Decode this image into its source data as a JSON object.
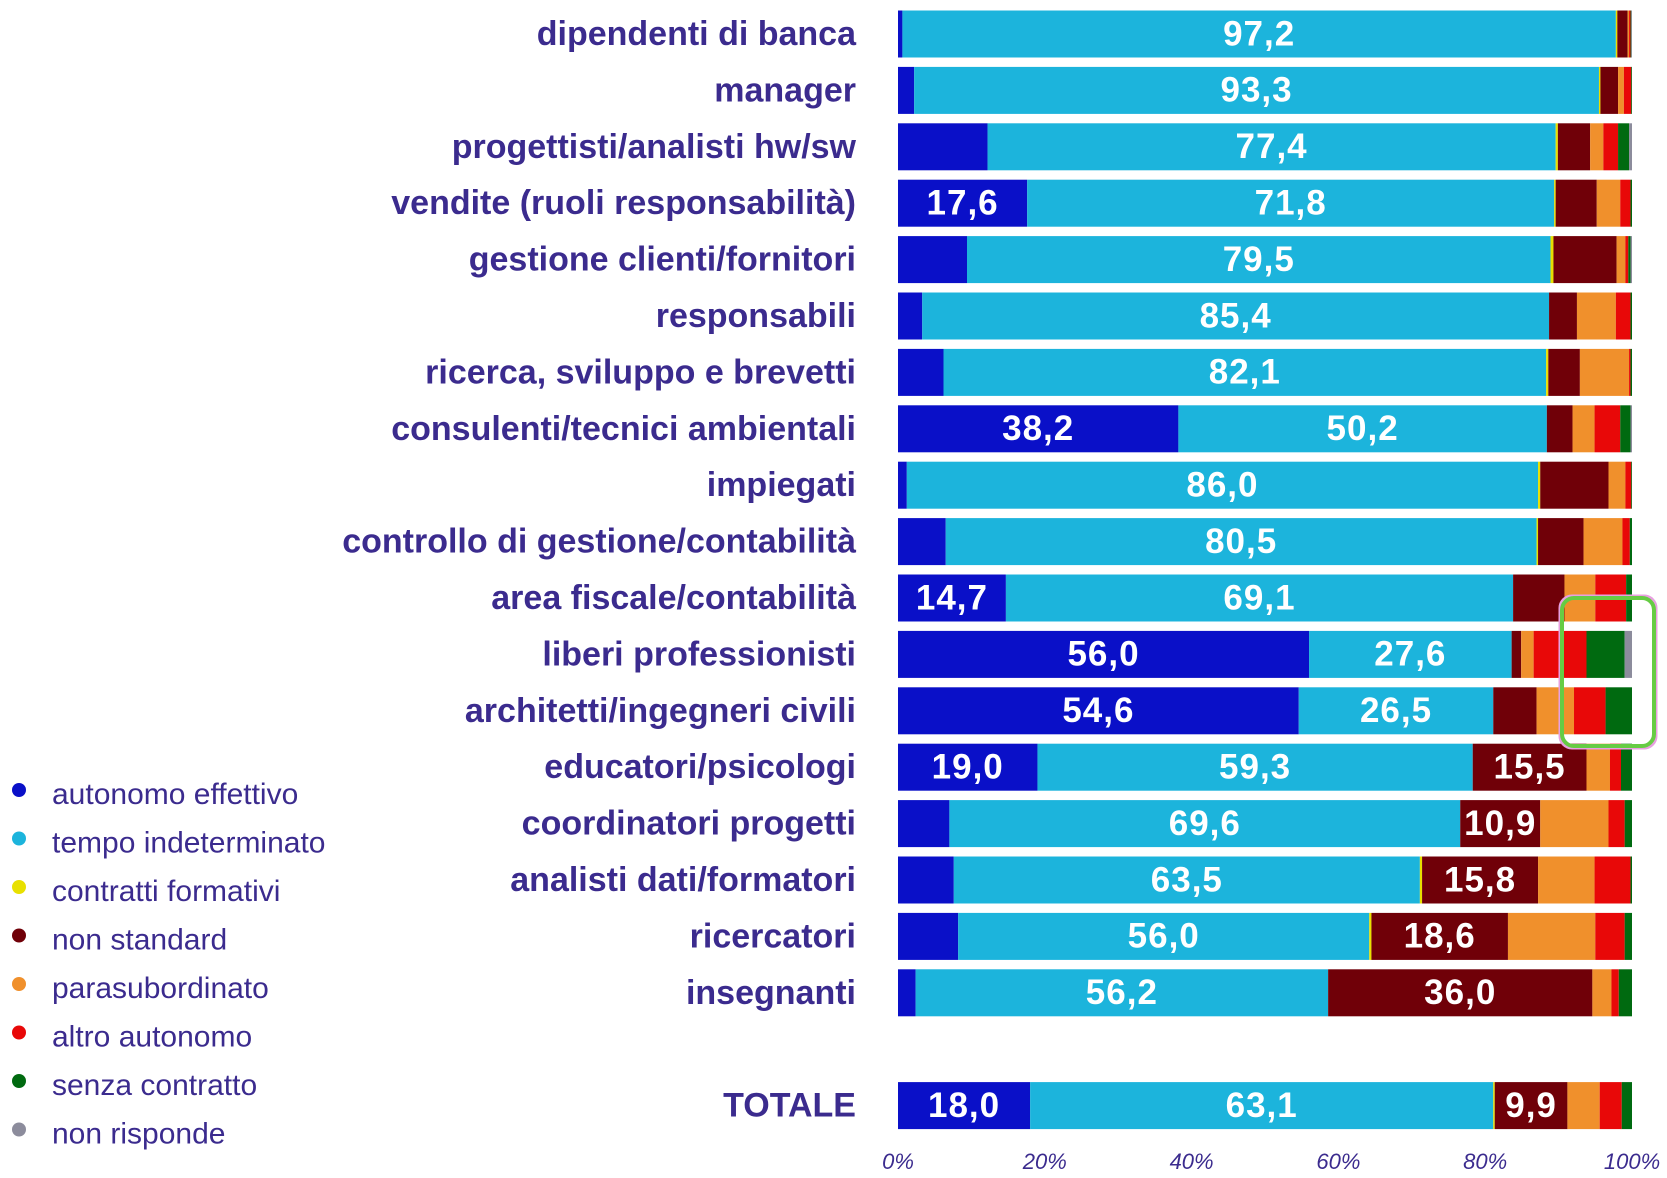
{
  "chart_data": {
    "type": "stacked-barh",
    "categories": [
      "dipendenti di banca",
      "manager",
      "progettisti/analisti hw/sw",
      "vendite (ruoli responsabilità)",
      "gestione clienti/fornitori",
      "responsabili",
      "ricerca, sviluppo e brevetti",
      "consulenti/tecnici ambientali",
      "impiegati",
      "controllo di gestione/contabilità",
      "area fiscale/contabilità",
      "liberi professionisti",
      "architetti/ingegneri civili",
      "educatori/psicologi",
      "coordinatori progetti",
      "analisti dati/formatori",
      "ricercatori",
      "insegnanti",
      null,
      "TOTALE"
    ],
    "series": [
      {
        "name": "autonomo effettivo",
        "color": "#0a10c8",
        "values": [
          0.6,
          2.2,
          12.2,
          17.6,
          9.4,
          3.3,
          6.2,
          38.2,
          1.2,
          6.5,
          14.7,
          56.0,
          54.6,
          19.0,
          7.0,
          7.6,
          8.2,
          2.4,
          null,
          18.0
        ],
        "value_labels": [
          null,
          null,
          null,
          "17,6",
          null,
          null,
          null,
          "38,2",
          null,
          null,
          "14,7",
          "56,0",
          "54,6",
          "19,0",
          null,
          null,
          null,
          null,
          null,
          "18,0"
        ]
      },
      {
        "name": "tempo indeterminato",
        "color": "#1cb4dc",
        "values": [
          97.2,
          93.3,
          77.4,
          71.8,
          79.5,
          85.4,
          82.1,
          50.2,
          86.0,
          80.5,
          69.1,
          27.6,
          26.5,
          59.3,
          69.6,
          63.5,
          56.0,
          56.2,
          null,
          63.1
        ],
        "value_labels": [
          "97,2",
          "93,3",
          "77,4",
          "71,8",
          "79,5",
          "85,4",
          "82,1",
          "50,2",
          "86,0",
          "80,5",
          "69,1",
          "27,6",
          "26,5",
          "59,3",
          "69,6",
          "63,5",
          "56,0",
          "56,2",
          null,
          "63,1"
        ]
      },
      {
        "name": "contratti formativi",
        "color": "#e8e000",
        "values": [
          0.2,
          0.2,
          0.3,
          0.2,
          0.4,
          0.0,
          0.3,
          0.0,
          0.3,
          0.2,
          0.0,
          0.0,
          0.0,
          0.0,
          0.0,
          0.3,
          0.3,
          0.0,
          null,
          0.2
        ]
      },
      {
        "name": "non standard",
        "color": "#700008",
        "values": [
          1.4,
          2.4,
          4.4,
          5.6,
          8.6,
          3.8,
          4.3,
          3.5,
          9.3,
          6.2,
          7.0,
          1.3,
          5.9,
          15.5,
          10.9,
          15.8,
          18.6,
          36.0,
          null,
          9.9
        ],
        "value_labels": [
          null,
          null,
          null,
          null,
          null,
          null,
          null,
          null,
          null,
          null,
          null,
          null,
          null,
          "15,5",
          "10,9",
          "15,8",
          "18,6",
          "36,0",
          null,
          "9,9"
        ]
      },
      {
        "name": "parasubordinato",
        "color": "#f0902c",
        "values": [
          0.2,
          0.8,
          1.8,
          3.2,
          1.2,
          5.3,
          6.7,
          3.0,
          2.3,
          5.3,
          4.2,
          1.7,
          5.1,
          3.2,
          9.3,
          7.7,
          11.9,
          2.6,
          null,
          4.4
        ]
      },
      {
        "name": "altro autonomo",
        "color": "#e80808",
        "values": [
          0.2,
          1.0,
          2.0,
          1.4,
          0.4,
          2.0,
          0.2,
          3.5,
          0.8,
          1.0,
          4.2,
          7.2,
          4.3,
          1.5,
          2.2,
          4.9,
          4.0,
          1.0,
          null,
          3.0
        ]
      },
      {
        "name": "senza contratto",
        "color": "#006a10",
        "values": [
          0.1,
          0.1,
          1.5,
          0.2,
          0.3,
          0.2,
          0.2,
          1.4,
          0.1,
          0.3,
          0.8,
          5.2,
          3.6,
          1.5,
          1.0,
          0.2,
          1.0,
          1.8,
          null,
          1.4
        ]
      },
      {
        "name": "non risponde",
        "color": "#8c8c9c",
        "values": [
          0.1,
          0.0,
          0.4,
          0.0,
          0.2,
          0.0,
          0.0,
          0.2,
          0.0,
          0.0,
          0.0,
          1.0,
          0.0,
          0.0,
          0.0,
          0.0,
          0.0,
          0.0,
          null,
          0.0
        ]
      }
    ],
    "xlim": [
      0,
      100
    ],
    "xticks": [
      {
        "value": 0,
        "label": "0%"
      },
      {
        "value": 20,
        "label": "20%"
      },
      {
        "value": 40,
        "label": "40%"
      },
      {
        "value": 60,
        "label": "60%"
      },
      {
        "value": 80,
        "label": "80%"
      },
      {
        "value": 100,
        "label": "100%"
      }
    ]
  }
}
